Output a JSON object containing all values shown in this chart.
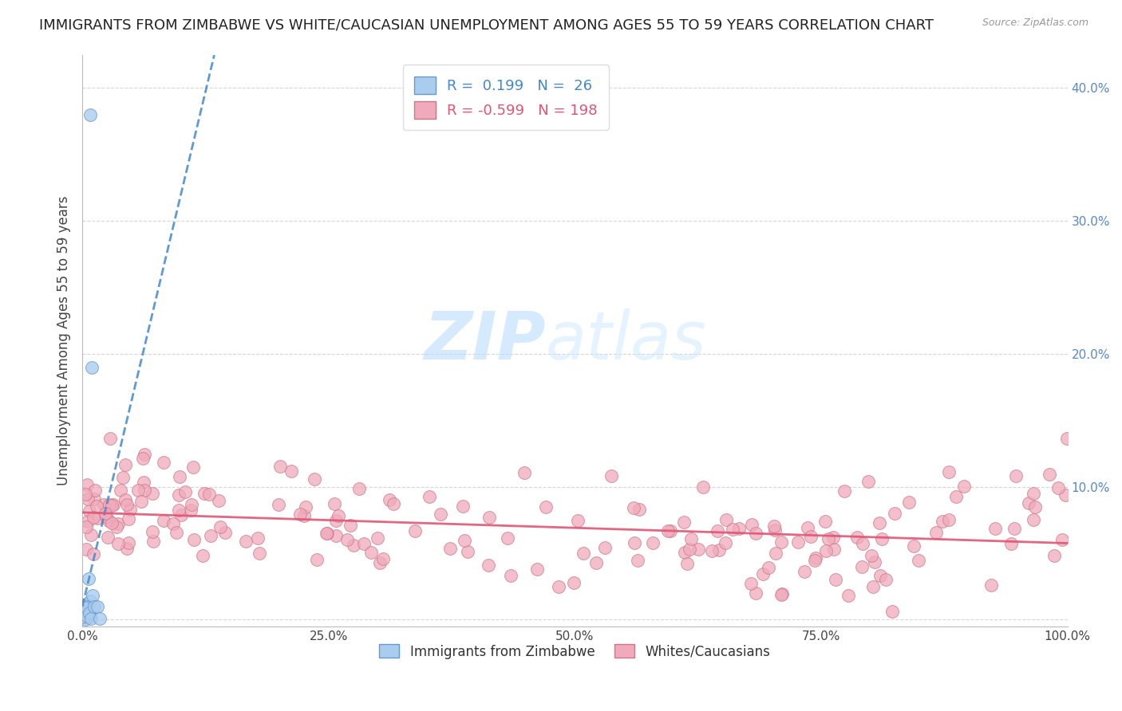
{
  "title": "IMMIGRANTS FROM ZIMBABWE VS WHITE/CAUCASIAN UNEMPLOYMENT AMONG AGES 55 TO 59 YEARS CORRELATION CHART",
  "source": "Source: ZipAtlas.com",
  "ylabel": "Unemployment Among Ages 55 to 59 years",
  "xlim": [
    0.0,
    1.0
  ],
  "ylim": [
    -0.005,
    0.425
  ],
  "yticks": [
    0.0,
    0.1,
    0.2,
    0.3,
    0.4
  ],
  "ytick_labels": [
    "",
    "10.0%",
    "20.0%",
    "30.0%",
    "40.0%"
  ],
  "xticks": [
    0.0,
    0.25,
    0.5,
    0.75,
    1.0
  ],
  "xtick_labels": [
    "0.0%",
    "25.0%",
    "50.0%",
    "75.0%",
    "100.0%"
  ],
  "blue_color": "#aaccee",
  "blue_edge": "#6699cc",
  "blue_line_color": "#4488cc",
  "pink_color": "#f0aabb",
  "pink_edge": "#cc7788",
  "pink_line_color": "#e05575",
  "legend_blue_label": "Immigrants from Zimbabwe",
  "legend_pink_label": "Whites/Caucasians",
  "R_blue": 0.199,
  "N_blue": 26,
  "R_pink": -0.599,
  "N_pink": 198,
  "watermark_ZIP": "ZIP",
  "watermark_atlas": "atlas",
  "background_color": "#ffffff",
  "grid_color": "#cccccc",
  "title_fontsize": 13,
  "axis_label_fontsize": 12,
  "tick_fontsize": 11,
  "tick_color_blue": "#5588cc",
  "tick_color_dark": "#444444"
}
